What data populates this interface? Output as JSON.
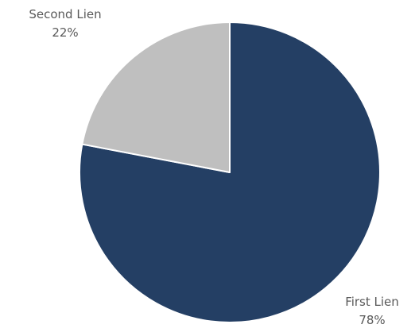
{
  "chart_data": {
    "type": "pie",
    "title": "",
    "slices": [
      {
        "label": "First Lien",
        "value": 78,
        "value_label": "78%",
        "color": "#243F64"
      },
      {
        "label": "Second Lien",
        "value": 22,
        "value_label": "22%",
        "color": "#BFBFBF"
      }
    ],
    "start_angle": "12 o'clock",
    "direction": "clockwise",
    "slice_border_color": "#FFFFFF",
    "label_color": "#595959",
    "legend": "none"
  }
}
